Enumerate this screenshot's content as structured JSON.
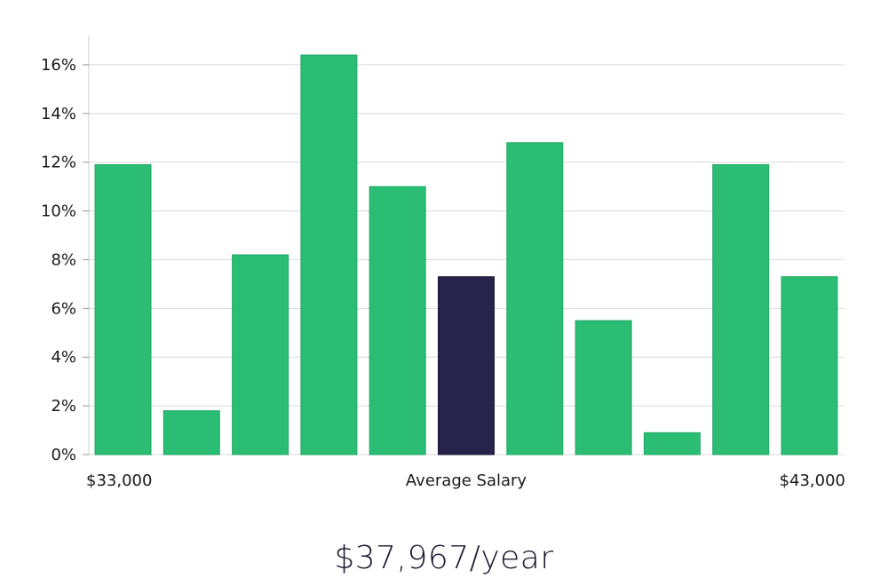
{
  "chart_data": {
    "type": "bar",
    "title": "",
    "xlabel": "Average Salary",
    "ylabel": "",
    "x_range_labels": {
      "min": "$33,000",
      "max": "$43,000"
    },
    "values": [
      11.9,
      1.8,
      8.2,
      16.4,
      11.0,
      7.3,
      12.8,
      5.5,
      0.9,
      11.9,
      7.3
    ],
    "highlight_index": 5,
    "ylim": [
      0,
      17.2
    ],
    "yticks": [
      0,
      2,
      4,
      6,
      8,
      10,
      12,
      14,
      16
    ],
    "ytick_suffix": "%",
    "grid": true,
    "legend": "none",
    "colors": {
      "bar": "#2bbd74",
      "highlight": "#27234a",
      "grid": "#d9d9d9",
      "axis": "#cccccc"
    }
  },
  "summary": {
    "salary_text": "$37,967/year"
  }
}
